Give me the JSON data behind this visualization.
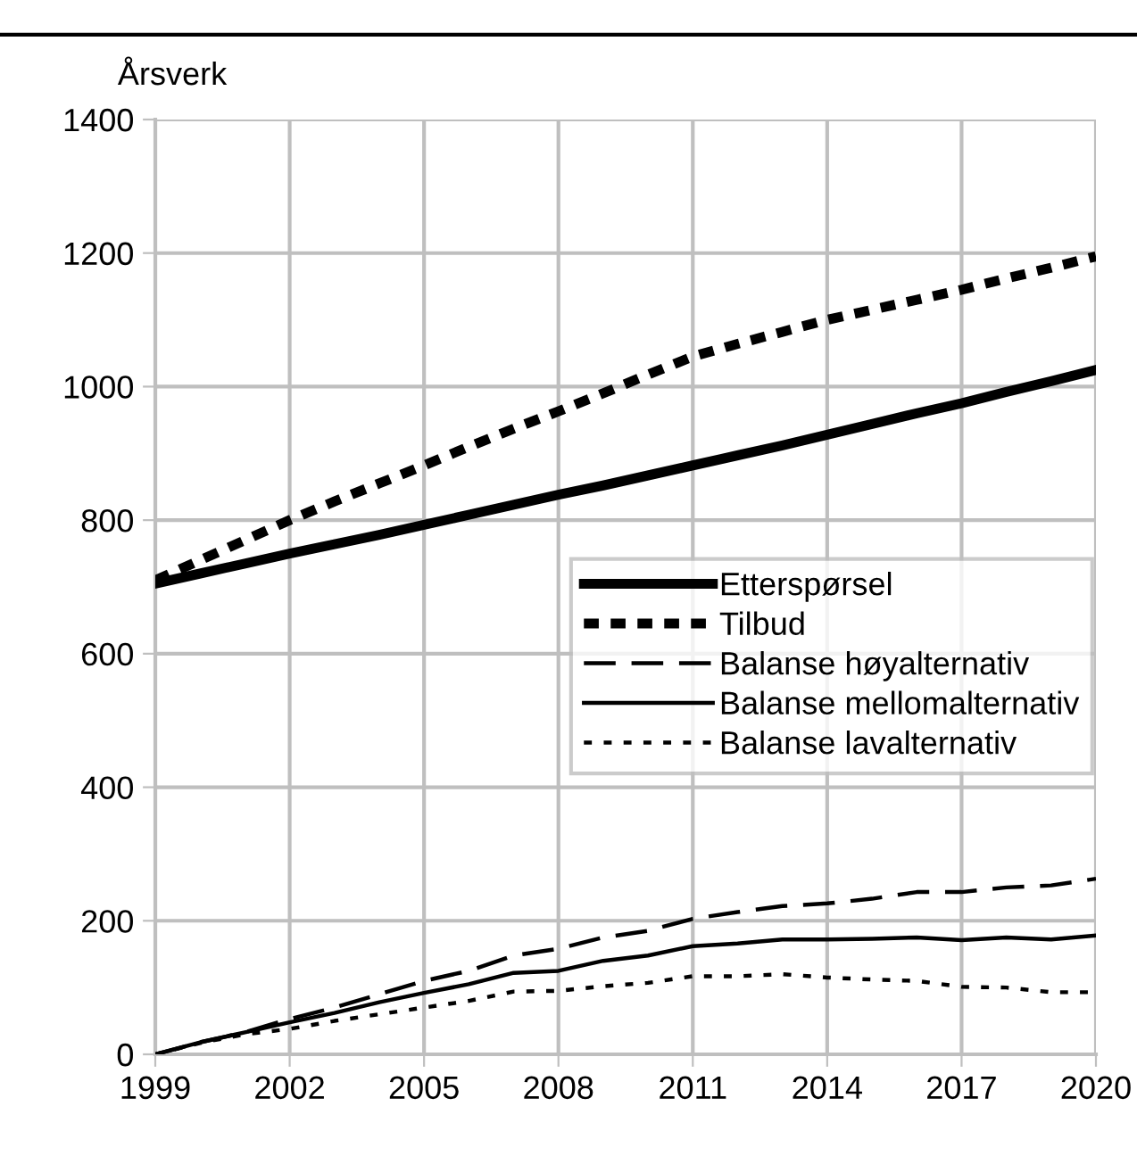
{
  "chart_data": {
    "type": "line",
    "ylabel": "Årsverk",
    "x": [
      1999,
      2000,
      2001,
      2002,
      2003,
      2004,
      2005,
      2006,
      2007,
      2008,
      2009,
      2010,
      2011,
      2012,
      2013,
      2014,
      2015,
      2016,
      2017,
      2018,
      2019,
      2020
    ],
    "xlim": [
      1999,
      2020
    ],
    "xticks": [
      1999,
      2002,
      2005,
      2008,
      2011,
      2014,
      2017,
      2020
    ],
    "ylim": [
      0,
      1400
    ],
    "yticks": [
      0,
      200,
      400,
      600,
      800,
      1000,
      1200,
      1400
    ],
    "grid": true,
    "legend": "right",
    "series": [
      {
        "name": "Etterspørsel",
        "color": "#000000",
        "line_style": "solid",
        "values": [
          705,
          720,
          735,
          750,
          764,
          778,
          793,
          808,
          823,
          838,
          852,
          867,
          882,
          897,
          912,
          928,
          944,
          960,
          975,
          992,
          1008,
          1025
        ]
      },
      {
        "name": "Tilbud",
        "color": "#000000",
        "line_style": "dotted",
        "values": [
          710,
          740,
          770,
          800,
          828,
          855,
          882,
          910,
          937,
          963,
          990,
          1018,
          1045,
          1064,
          1082,
          1100,
          1115,
          1130,
          1145,
          1162,
          1178,
          1195
        ]
      },
      {
        "name": "Balanse høyalternativ",
        "color": "#000000",
        "line_style": "dashed",
        "values": [
          0,
          18,
          33,
          53,
          70,
          90,
          110,
          125,
          148,
          158,
          175,
          185,
          203,
          213,
          222,
          226,
          233,
          243,
          243,
          250,
          253,
          263
        ]
      },
      {
        "name": "Balanse mellomalternativ",
        "color": "#000000",
        "line_style": "solid",
        "values": [
          0,
          18,
          33,
          48,
          62,
          78,
          92,
          105,
          122,
          125,
          140,
          148,
          162,
          166,
          172,
          172,
          173,
          175,
          171,
          175,
          172,
          178
        ]
      },
      {
        "name": "Balanse lavalternativ",
        "color": "#000000",
        "line_style": "dotted",
        "values": [
          0,
          17,
          30,
          38,
          50,
          60,
          70,
          80,
          94,
          95,
          102,
          107,
          117,
          117,
          120,
          115,
          112,
          110,
          101,
          100,
          93,
          93
        ]
      }
    ]
  }
}
